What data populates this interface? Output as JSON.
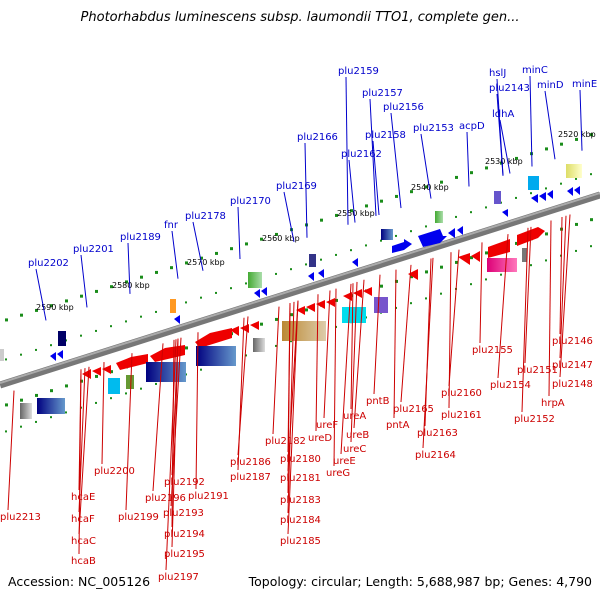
{
  "title": "Photorhabdus luminescens subsp. laumondii TTO1, complete gen...",
  "footer": {
    "accession": "Accession: NC_005126",
    "summary": "Topology: circular; Length: 5,688,987 bp; Genes: 4,790"
  },
  "colors": {
    "backbone": "#888888",
    "top_labels": "#0000cc",
    "bottom_labels": "#cc0000",
    "forward_genes": "#0000ee",
    "reverse_genes": "#ee0000",
    "dots": "#1a8c1a"
  },
  "kbp_ticks": [
    "2520 kbp",
    "2530 kbp",
    "2540 kbp",
    "2550 kbp",
    "2560 kbp",
    "2570 kbp",
    "2580 kbp",
    "2590 kbp"
  ],
  "top_labels": [
    "minC",
    "hslJ",
    "minD",
    "minE",
    "plu2143",
    "ldhA",
    "plu2159",
    "plu2157",
    "plu2156",
    "acpD",
    "plu2158",
    "plu2153",
    "plu2166",
    "plu2162",
    "plu2169",
    "plu2170",
    "fnr",
    "plu2178",
    "plu2189",
    "plu2201",
    "plu2202"
  ],
  "bottom_labels": [
    "plu2146",
    "plu2147",
    "plu2148",
    "plu2155",
    "plu2151",
    "plu2154",
    "hrpA",
    "plu2152",
    "plu2160",
    "plu2161",
    "pntB",
    "plu2165",
    "pntA",
    "plu2163",
    "plu2164",
    "ureA",
    "ureF",
    "ureB",
    "ureD",
    "ureC",
    "ureE",
    "ureG",
    "plu2182",
    "plu2186",
    "plu2180",
    "plu2187",
    "plu2181",
    "plu2183",
    "plu2184",
    "plu2185",
    "plu2200",
    "plu2192",
    "plu2196",
    "plu2191",
    "plu2199",
    "plu2193",
    "plu2194",
    "plu2195",
    "plu2197",
    "hcaE",
    "hcaF",
    "hcaC",
    "hcaB",
    "plu2213"
  ]
}
